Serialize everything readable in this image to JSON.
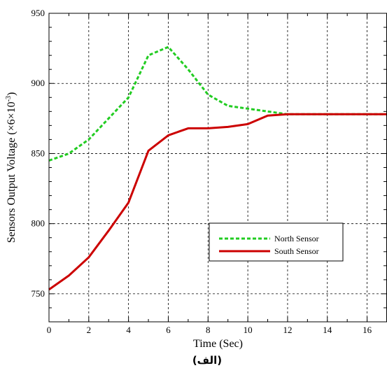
{
  "chart_data": {
    "type": "line",
    "xlabel": "Time (Sec)",
    "ylabel": "Sensors Output Voltage (×6×10",
    "ylabel_exponent": "-3",
    "ylabel_close": ")",
    "caption": "(الف)",
    "xlim": [
      0,
      17
    ],
    "ylim": [
      730,
      950
    ],
    "x_ticks": [
      0,
      2,
      4,
      6,
      8,
      10,
      12,
      14,
      16
    ],
    "y_ticks": [
      750,
      800,
      850,
      900,
      950
    ],
    "grid": true,
    "legend_position": "lower-right",
    "series": [
      {
        "name": "North Sensor",
        "color": "#22cc22",
        "style": "dashed",
        "x": [
          0,
          1,
          2,
          3,
          4,
          5,
          6,
          7,
          8,
          9,
          10,
          11,
          12,
          13,
          14,
          15,
          16,
          17
        ],
        "y": [
          845,
          850,
          860,
          875,
          890,
          920,
          926,
          910,
          892,
          884,
          882,
          880,
          878,
          878,
          878,
          878,
          878,
          878
        ]
      },
      {
        "name": "South Sensor",
        "color": "#cc0000",
        "style": "solid",
        "x": [
          0,
          1,
          2,
          3,
          4,
          5,
          6,
          7,
          8,
          9,
          10,
          11,
          12,
          13,
          14,
          15,
          16,
          17
        ],
        "y": [
          753,
          763,
          776,
          795,
          815,
          852,
          863,
          868,
          868,
          869,
          871,
          877,
          878,
          878,
          878,
          878,
          878,
          878
        ]
      }
    ]
  }
}
